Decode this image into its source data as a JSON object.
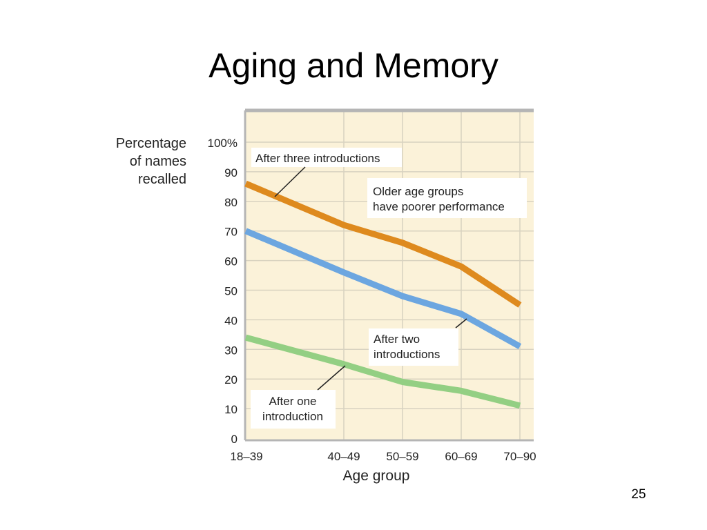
{
  "slide": {
    "title": "Aging and Memory",
    "number": "25"
  },
  "chart_data": {
    "type": "line",
    "title": "",
    "xlabel": "Age group",
    "ylabel_lines": [
      "Percentage",
      "of names",
      "recalled"
    ],
    "categories": [
      "18–39",
      "40–49",
      "50–59",
      "60–69",
      "70–90"
    ],
    "x_positions": [
      0,
      3,
      4,
      5,
      6
    ],
    "yticks": [
      "0",
      "10",
      "20",
      "30",
      "40",
      "50",
      "60",
      "70",
      "80",
      "90",
      "100%"
    ],
    "ylim": [
      0,
      100
    ],
    "grid": true,
    "series": [
      {
        "label": "After three introductions",
        "values": [
          86,
          72,
          66,
          58,
          45
        ],
        "color": "#DE8A1E"
      },
      {
        "label": "After two introductions",
        "label_lines": [
          "After two",
          "introductions"
        ],
        "values": [
          70,
          56,
          48,
          42,
          31
        ],
        "color": "#6CA6E0"
      },
      {
        "label": "After one introduction",
        "label_lines": [
          "After one",
          "introduction"
        ],
        "values": [
          34,
          25,
          19,
          16,
          11
        ],
        "color": "#93CF83"
      }
    ],
    "annotation": {
      "label_lines": [
        "Older age groups",
        "have poorer performance"
      ]
    },
    "background_color": "#FBF2D9"
  }
}
